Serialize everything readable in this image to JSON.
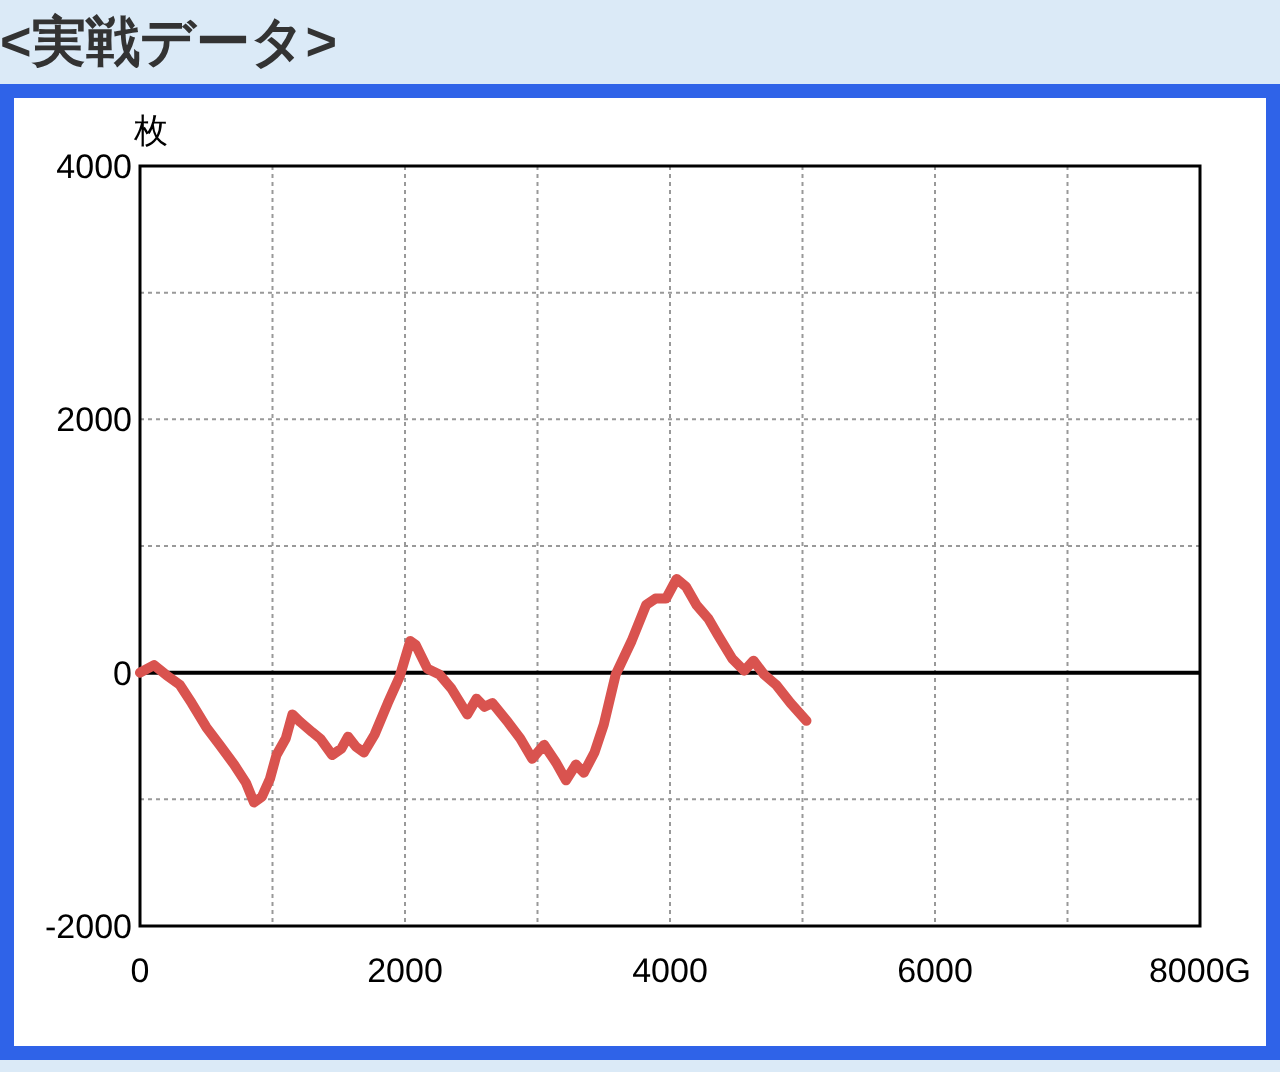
{
  "chart_data": {
    "type": "line",
    "title": "<実戦データ>",
    "ylabel": "枚",
    "x": [
      0,
      106,
      200,
      300,
      390,
      500,
      600,
      710,
      800,
      860,
      920,
      980,
      1030,
      1100,
      1150,
      1210,
      1300,
      1360,
      1450,
      1520,
      1570,
      1630,
      1690,
      1770,
      1870,
      1960,
      2040,
      2080,
      2170,
      2260,
      2350,
      2470,
      2540,
      2600,
      2660,
      2780,
      2870,
      2960,
      3050,
      3140,
      3215,
      3290,
      3350,
      3430,
      3500,
      3590,
      3710,
      3820,
      3890,
      3970,
      4050,
      4120,
      4200,
      4290,
      4360,
      4470,
      4560,
      4630,
      4710,
      4800,
      4910,
      5030
    ],
    "series": [
      {
        "color": "#d9534f",
        "values": [
          0,
          60,
          -20,
          -95,
          -240,
          -430,
          -570,
          -725,
          -870,
          -1025,
          -980,
          -840,
          -650,
          -520,
          -330,
          -390,
          -470,
          -520,
          -650,
          -600,
          -505,
          -585,
          -630,
          -490,
          -240,
          -30,
          250,
          220,
          30,
          -15,
          -125,
          -330,
          -205,
          -270,
          -240,
          -395,
          -520,
          -680,
          -570,
          -710,
          -850,
          -725,
          -790,
          -630,
          -410,
          -15,
          250,
          535,
          585,
          585,
          740,
          680,
          535,
          425,
          300,
          110,
          15,
          95,
          -15,
          -95,
          -240,
          -380
        ]
      }
    ],
    "xlim": [
      0,
      8000
    ],
    "ylim": [
      -2000,
      4000
    ],
    "xticks": [
      0,
      {
        "value": 1000,
        "label": null
      },
      2000,
      {
        "value": 3000,
        "label": null
      },
      4000,
      {
        "value": 5000,
        "label": null
      },
      6000,
      {
        "value": 7000,
        "label": null
      },
      {
        "value": 8000,
        "label": "8000G"
      }
    ],
    "yticks": [
      -2000,
      {
        "value": -1000,
        "label": null
      },
      0,
      {
        "value": 1000,
        "label": null
      },
      2000,
      {
        "value": 3000,
        "label": null
      },
      4000
    ],
    "grid": true,
    "marker": "none",
    "line_style": "solid",
    "ref_lines": [
      {
        "axis": "y",
        "value": 0,
        "color": "#000000"
      }
    ]
  }
}
